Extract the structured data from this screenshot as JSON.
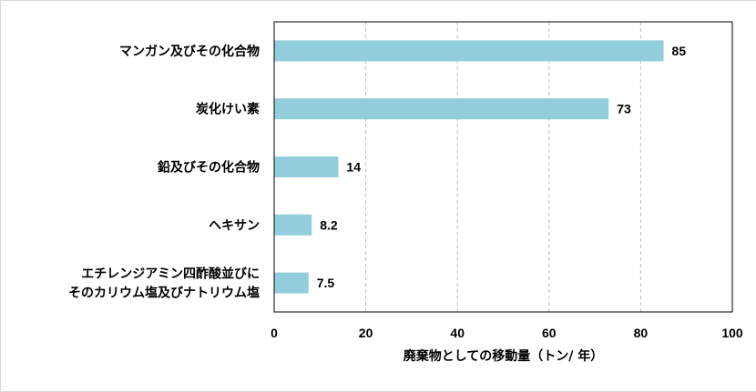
{
  "chart_data": {
    "type": "bar",
    "orientation": "horizontal",
    "categories": [
      [
        "マンガン及びその化合物"
      ],
      [
        "炭化けい素"
      ],
      [
        "鉛及びその化合物"
      ],
      [
        "ヘキサン"
      ],
      [
        "エチレンジアミン四酢酸並びに",
        "そのカリウム塩及びナトリウム塩"
      ]
    ],
    "values": [
      85,
      73,
      14,
      8.2,
      7.5
    ],
    "value_labels": [
      "85",
      "73",
      "14",
      "8.2",
      "7.5"
    ],
    "xlabel": "廃棄物としての移動量（トン/ 年）",
    "ylabel": "",
    "xlim": [
      0,
      100
    ],
    "xticks": [
      0,
      20,
      40,
      60,
      80,
      100
    ],
    "grid": "vertical-dashed",
    "bar_color": "#92CDDC"
  }
}
